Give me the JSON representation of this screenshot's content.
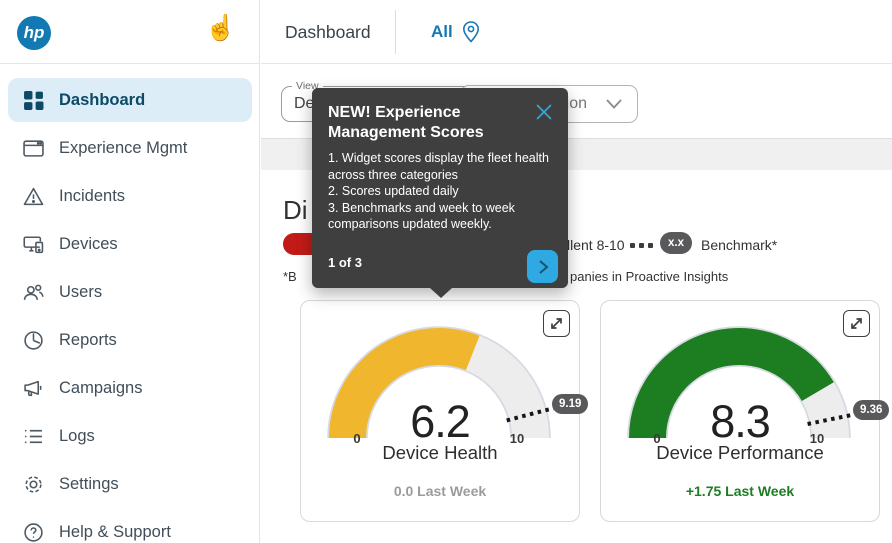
{
  "brand": {
    "logo_text": "hp"
  },
  "topbar": {
    "title": "Dashboard",
    "scope": "All"
  },
  "sidebar": {
    "items": [
      {
        "label": "Dashboard",
        "icon": "dashboard-grid-icon",
        "active": true
      },
      {
        "label": "Experience Mgmt",
        "icon": "window-icon",
        "active": false
      },
      {
        "label": "Incidents",
        "icon": "warning-triangle-icon",
        "active": false
      },
      {
        "label": "Devices",
        "icon": "devices-icon",
        "active": false
      },
      {
        "label": "Users",
        "icon": "users-icon",
        "active": false
      },
      {
        "label": "Reports",
        "icon": "report-clock-icon",
        "active": false
      },
      {
        "label": "Campaigns",
        "icon": "megaphone-icon",
        "active": false
      },
      {
        "label": "Logs",
        "icon": "list-icon",
        "active": false
      },
      {
        "label": "Settings",
        "icon": "gear-icon",
        "active": false
      },
      {
        "label": "Help & Support",
        "icon": "help-circle-icon",
        "active": false
      }
    ]
  },
  "filters": {
    "view_label": "View",
    "view_value": "Def",
    "location_value": "tion"
  },
  "tour_popover": {
    "title": "NEW! Experience Management Scores",
    "steps": [
      "1. Widget scores display the fleet health across three categories",
      "2. Scores updated daily",
      "3. Benchmarks and week to week comparisons updated weekly."
    ],
    "pager": "1 of 3",
    "accent_color": "#2fa9e1"
  },
  "section": {
    "heading_fragment": "Di",
    "legend": {
      "excellent_fragment": "llent 8-10",
      "benchmark_pill": "x.x",
      "benchmark_label": "Benchmark*",
      "red_badge_color": "#c21b17",
      "pill_color": "#59595b"
    },
    "footnote_fragment_left": "*B",
    "footnote_fragment_right": "panies in Proactive Insights"
  },
  "chart_data": [
    {
      "type": "gauge",
      "title": "Device Health",
      "value": 6.2,
      "min": 0,
      "max": 10,
      "benchmark": 9.19,
      "delta_label": "0.0 Last Week",
      "delta_color": "#9b9b9b",
      "color": "#f0b72e",
      "track_color": "#ededed"
    },
    {
      "type": "gauge",
      "title": "Device Performance",
      "value": 8.3,
      "min": 0,
      "max": 10,
      "benchmark": 9.36,
      "delta_label": "+1.75 Last Week",
      "delta_color": "#1d7d21",
      "color": "#1d7d21",
      "track_color": "#ededed"
    }
  ]
}
